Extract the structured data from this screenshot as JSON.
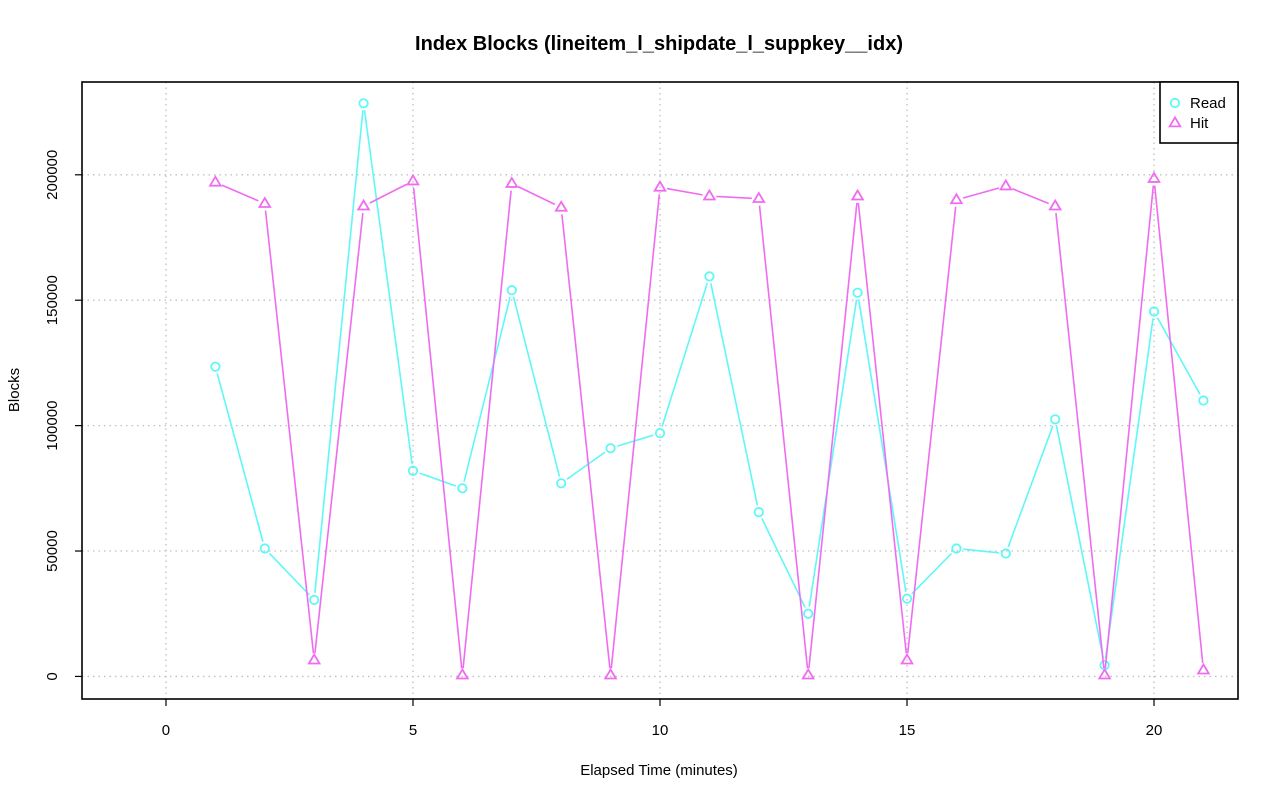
{
  "chart_data": {
    "type": "line",
    "title": "Index Blocks (lineitem_l_shipdate_l_suppkey__idx)",
    "xlabel": "Elapsed Time (minutes)",
    "ylabel": "Blocks",
    "xlim": [
      -1.7,
      21.7
    ],
    "ylim": [
      -9000,
      237000
    ],
    "xticks": [
      0,
      5,
      10,
      15,
      20
    ],
    "yticks": [
      0,
      50000,
      100000,
      150000,
      200000
    ],
    "grid": true,
    "legend_position": "top-right",
    "x": [
      1,
      2,
      3,
      4,
      5,
      6,
      7,
      8,
      9,
      10,
      11,
      12,
      13,
      14,
      15,
      16,
      17,
      18,
      19,
      20,
      21
    ],
    "series": [
      {
        "name": "Read",
        "color": "#5ff7f7",
        "marker": "circle",
        "values": [
          123500,
          51000,
          30500,
          228500,
          82000,
          75000,
          154000,
          77000,
          91000,
          97000,
          159500,
          65500,
          25000,
          153000,
          31000,
          51000,
          49000,
          102500,
          4500,
          145500,
          110000
        ]
      },
      {
        "name": "Hit",
        "color": "#ef6cf0",
        "marker": "triangle",
        "values": [
          197000,
          188500,
          6500,
          187500,
          197500,
          500,
          196500,
          187000,
          500,
          195000,
          191500,
          190500,
          500,
          191500,
          6500,
          190000,
          195500,
          187500,
          500,
          198500,
          2500
        ]
      }
    ]
  }
}
